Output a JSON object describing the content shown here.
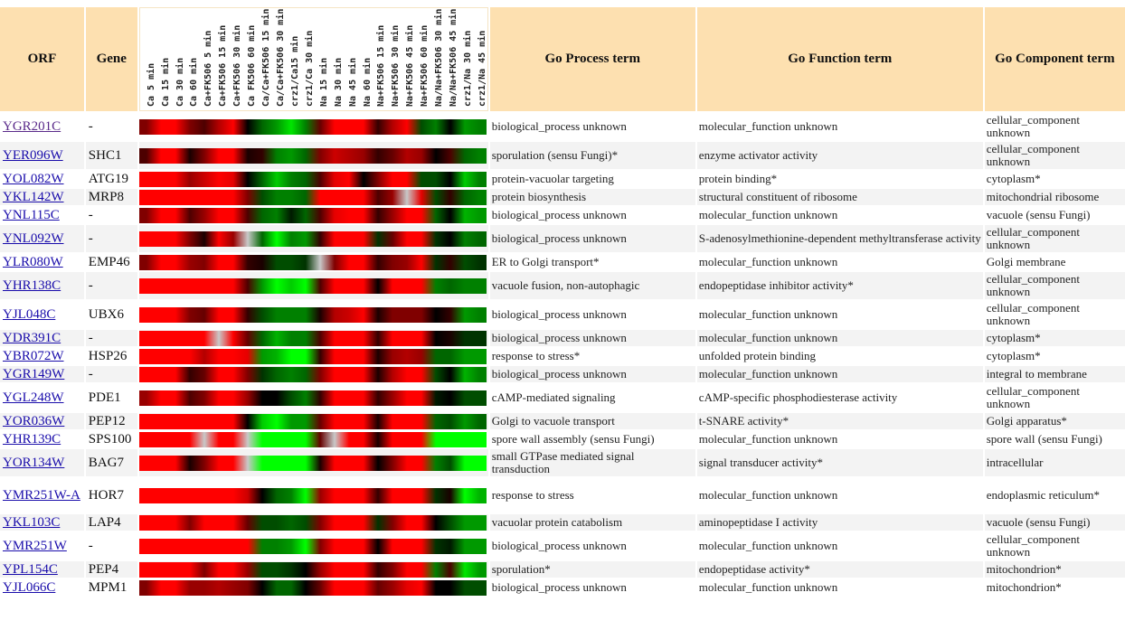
{
  "headers": {
    "orf": "ORF",
    "gene": "Gene",
    "process": "Go Process term",
    "function": "Go Function term",
    "component": "Go Component term"
  },
  "conditions": [
    "Ca 5 min",
    "Ca 15 min",
    "Ca 30 min",
    "Ca 60 min",
    "Ca+FK506 5 min",
    "Ca+FK506 15 min",
    "Ca+FK506 30 min",
    "Ca FK506 60 min",
    "Ca/Ca+FK506 15 min",
    "Ca/Ca+FK506 30 min",
    "crz1/Ca15 min",
    "crz1/Ca 30 min",
    "Na 15 min",
    "Na 30 min",
    "Na 45 min",
    "Na 60 min",
    "Na+FK506 15 min",
    "Na+FK506 30 min",
    "Na+FK506 45 min",
    "Na+FK506 60 min",
    "Na/Na+FK506 30 min",
    "Na/Na+FK506 45 min",
    "crz1/Na 30 min",
    "crz1/Na 45 min"
  ],
  "colors": {
    "up": "#ff0000",
    "down": "#00ff00",
    "zero": "#000000",
    "missing": "#c8c8c8",
    "header_bg": "#fde0b0",
    "alt_row": "#f3f3f3",
    "link": "#1a0dab"
  },
  "rows": [
    {
      "orf": "YGR201C",
      "gene": "-",
      "process": "biological_process unknown",
      "function": "molecular_function unknown",
      "component": "cellular_component unknown",
      "visited": true,
      "values": [
        0.5,
        1,
        1,
        0.5,
        0.3,
        0.7,
        1,
        0,
        -0.4,
        -0.6,
        -0.9,
        -0.5,
        0.4,
        1,
        1,
        1,
        0.2,
        0.7,
        1,
        -0.3,
        -0.5,
        0,
        -0.6,
        -0.5
      ]
    },
    {
      "orf": "YER096W",
      "gene": "SHC1",
      "process": "sporulation (sensu Fungi)*",
      "function": "enzyme activator activity",
      "component": "cellular_component unknown",
      "values": [
        0.3,
        1,
        1,
        0.1,
        0.5,
        1,
        1,
        0.1,
        0.2,
        -0.5,
        -0.6,
        -0.4,
        0.5,
        0.8,
        0.7,
        0.6,
        0.2,
        0.4,
        0.7,
        0.6,
        0,
        0.3,
        -0.4,
        -0.5
      ]
    },
    {
      "orf": "YOL082W",
      "gene": "ATG19",
      "process": "protein-vacuolar targeting",
      "function": "protein binding*",
      "component": "cytoplasm*",
      "values": [
        1,
        1,
        1,
        0.6,
        0.8,
        1,
        0.9,
        0,
        -0.4,
        -0.8,
        -0.5,
        -0.4,
        0.3,
        0.9,
        1,
        0,
        0.5,
        1,
        1,
        -0.3,
        -0.3,
        0,
        -0.8,
        -0.5
      ]
    },
    {
      "orf": "YKL142W",
      "gene": "MRP8",
      "process": "protein biosynthesis",
      "function": "structural constituent of ribosome",
      "component": "mitochondrial ribosome",
      "values": [
        1,
        1,
        1,
        1,
        1,
        1,
        1,
        0.5,
        -0.3,
        -0.5,
        -0.5,
        -0.4,
        1,
        1,
        1,
        1,
        0.3,
        0.6,
        null,
        0.9,
        -0.3,
        0.2,
        -0.4,
        -0.5
      ]
    },
    {
      "orf": "YNL115C",
      "gene": "-",
      "process": "biological_process unknown",
      "function": "molecular_function unknown",
      "component": "vacuole (sensu Fungi)",
      "values": [
        0.5,
        1,
        1,
        0.3,
        0.6,
        1,
        1,
        0.3,
        -0.4,
        -0.5,
        -0.1,
        -0.4,
        0.3,
        0.9,
        1,
        1,
        0.2,
        0.6,
        1,
        1,
        -0.4,
        0,
        -0.7,
        -0.6
      ]
    },
    {
      "orf": "YNL092W",
      "gene": "-",
      "process": "biological_process unknown",
      "function": "S-adenosylmethionine-dependent methyltransferase activity",
      "component": "cellular_component unknown",
      "values": [
        1,
        1,
        1,
        0.5,
        0.1,
        1,
        0.6,
        null,
        -0.4,
        -1,
        -0.5,
        -0.6,
        0.2,
        1,
        1,
        1,
        -0.2,
        0.4,
        1,
        1,
        -0.2,
        0,
        -0.5,
        -0.4
      ]
    },
    {
      "orf": "YLR080W",
      "gene": "EMP46",
      "process": "ER to Golgi transport*",
      "function": "molecular_function unknown",
      "component": "Golgi membrane",
      "values": [
        0.5,
        1,
        1,
        0.6,
        0.5,
        1,
        1,
        0.2,
        0.1,
        -0.3,
        -0.3,
        -0.2,
        null,
        0.5,
        1,
        1,
        0.2,
        0.5,
        0.6,
        1,
        -0.2,
        0.2,
        -0.3,
        -0.2
      ]
    },
    {
      "orf": "YHR138C",
      "gene": "-",
      "process": "vacuole fusion, non-autophagic",
      "function": "endopeptidase inhibitor activity*",
      "component": "cellular_component unknown",
      "values": [
        1,
        1,
        1,
        1,
        1,
        1,
        1,
        0.3,
        -0.6,
        -1,
        -0.8,
        -1,
        0.3,
        1,
        1,
        1,
        0,
        1,
        1,
        1,
        -0.5,
        -0.4,
        -0.5,
        -0.5
      ]
    },
    {
      "orf": "YJL048C",
      "gene": "UBX6",
      "process": "biological_process unknown",
      "function": "molecular_function unknown",
      "component": "cellular_component unknown",
      "values": [
        1,
        1,
        1,
        0.5,
        0.4,
        1,
        1,
        0.2,
        -0.3,
        -0.5,
        -0.5,
        -0.5,
        0.1,
        0.7,
        0.8,
        1,
        0.1,
        0.5,
        0.5,
        0.5,
        0,
        0.2,
        -0.6,
        -0.5
      ]
    },
    {
      "orf": "YDR391C",
      "gene": "-",
      "process": "biological_process unknown",
      "function": "molecular_function unknown",
      "component": "cytoplasm*",
      "values": [
        1,
        1,
        1,
        1,
        1,
        null,
        1,
        0.4,
        -0.4,
        -0.7,
        -0.5,
        -0.5,
        0.3,
        1,
        1,
        1,
        0.2,
        1,
        1,
        1,
        0,
        0.1,
        -0.2,
        -0.2
      ]
    },
    {
      "orf": "YBR072W",
      "gene": "HSP26",
      "process": "response to stress*",
      "function": "unfolded protein binding",
      "component": "cytoplasm*",
      "values": [
        1,
        1,
        1,
        1,
        0.7,
        1,
        1,
        0.9,
        -0.6,
        -0.7,
        -1,
        -1,
        0.2,
        1,
        1,
        1,
        0.1,
        0.6,
        0.7,
        0.6,
        -0.4,
        -0.4,
        -0.6,
        -0.6
      ]
    },
    {
      "orf": "YGR149W",
      "gene": "-",
      "process": "biological_process unknown",
      "function": "molecular_function unknown",
      "component": "integral to membrane",
      "values": [
        1,
        1,
        1,
        0.2,
        0.4,
        1,
        1,
        0.5,
        -0.2,
        -0.4,
        -0.5,
        -0.4,
        0.5,
        1,
        1,
        1,
        0.1,
        0.7,
        1,
        1,
        -0.3,
        0,
        -0.7,
        -0.5
      ]
    },
    {
      "orf": "YGL248W",
      "gene": "PDE1",
      "process": "cAMP-mediated signaling",
      "function": "cAMP-specific phosphodiesterase activity",
      "component": "cellular_component unknown",
      "values": [
        0.6,
        1,
        1,
        0.3,
        0.5,
        1,
        1,
        0.6,
        0,
        0,
        -0.3,
        -0.5,
        0.2,
        1,
        1,
        1,
        0.2,
        0.6,
        1,
        1,
        -0.1,
        0,
        -0.3,
        -0.3
      ]
    },
    {
      "orf": "YOR036W",
      "gene": "PEP12",
      "process": "Golgi to vacuole transport",
      "function": "t-SNARE activity*",
      "component": "Golgi apparatus*",
      "values": [
        1,
        1,
        1,
        1,
        1,
        1,
        1,
        0,
        -0.8,
        -1,
        -0.6,
        -0.6,
        0.4,
        1,
        1,
        1,
        0.1,
        1,
        1,
        1,
        -0.4,
        -0.3,
        -0.6,
        -0.4
      ]
    },
    {
      "orf": "YHR139C",
      "gene": "SPS100",
      "process": "spore wall assembly (sensu Fungi)",
      "function": "molecular_function unknown",
      "component": "spore wall (sensu Fungi)",
      "values": [
        1,
        1,
        1,
        1,
        null,
        1,
        1,
        null,
        -1,
        -1,
        -1,
        -1,
        0.4,
        null,
        1,
        1,
        0.1,
        1,
        1,
        1,
        -1,
        -1,
        -1,
        -1
      ]
    },
    {
      "orf": "YOR134W",
      "gene": "BAG7",
      "process": "small GTPase mediated signal transduction",
      "function": "signal transducer activity*",
      "component": "intracellular",
      "values": [
        1,
        1,
        1,
        0.1,
        0.5,
        1,
        1,
        null,
        -1,
        -1,
        -1,
        -1,
        0.1,
        1,
        1,
        1,
        0,
        0.5,
        1,
        1,
        -0.5,
        -0.3,
        -1,
        -1
      ]
    },
    {
      "orf": "YMR251W-A",
      "gene": "HOR7",
      "process": "response to stress",
      "function": "molecular_function unknown",
      "component": "endoplasmic reticulum*",
      "values": [
        1,
        1,
        1,
        1,
        1,
        1,
        1,
        0.8,
        0,
        -0.4,
        -0.5,
        -1,
        0.6,
        1,
        1,
        1,
        0.2,
        1,
        1,
        1,
        -0.2,
        0.1,
        -1,
        -0.7
      ]
    },
    {
      "orf": "YKL103C",
      "gene": "LAP4",
      "process": "vacuolar protein catabolism",
      "function": "aminopeptidase I activity",
      "component": "vacuole (sensu Fungi)",
      "values": [
        1,
        1,
        1,
        0.5,
        1,
        1,
        1,
        0.4,
        -0.3,
        -0.3,
        -0.4,
        -0.3,
        0.5,
        1,
        1,
        1,
        -0.2,
        0.5,
        1,
        1,
        0,
        -0.3,
        -0.6,
        -0.6
      ]
    },
    {
      "orf": "YMR251W",
      "gene": "-",
      "process": "biological_process unknown",
      "function": "molecular_function unknown",
      "component": "cellular_component unknown",
      "values": [
        1,
        1,
        1,
        1,
        1,
        1,
        1,
        1,
        -0.5,
        -0.5,
        -0.6,
        -1,
        0.5,
        1,
        1,
        1,
        0,
        1,
        1,
        1,
        -0.2,
        -0.1,
        -0.6,
        -0.6
      ]
    },
    {
      "orf": "YPL154C",
      "gene": "PEP4",
      "process": "sporulation*",
      "function": "endopeptidase activity*",
      "component": "mitochondrion*",
      "values": [
        1,
        1,
        1,
        1,
        0.5,
        1,
        1,
        0.6,
        -0.3,
        -0.3,
        -0.2,
        0,
        0.6,
        1,
        1,
        1,
        0.2,
        0.5,
        1,
        1,
        -0.5,
        0.3,
        -0.9,
        -0.6
      ]
    },
    {
      "orf": "YJL066C",
      "gene": "MPM1",
      "process": "biological_process unknown",
      "function": "molecular_function unknown",
      "component": "mitochondrion*",
      "values": [
        0.5,
        1,
        1,
        0.6,
        0.6,
        0.7,
        0.6,
        0.5,
        0,
        -0.4,
        -0.4,
        0,
        0.4,
        1,
        1,
        1,
        0.4,
        0.6,
        0.9,
        1,
        0,
        0,
        -0.3,
        -0.3
      ]
    }
  ],
  "row_heights": null
}
